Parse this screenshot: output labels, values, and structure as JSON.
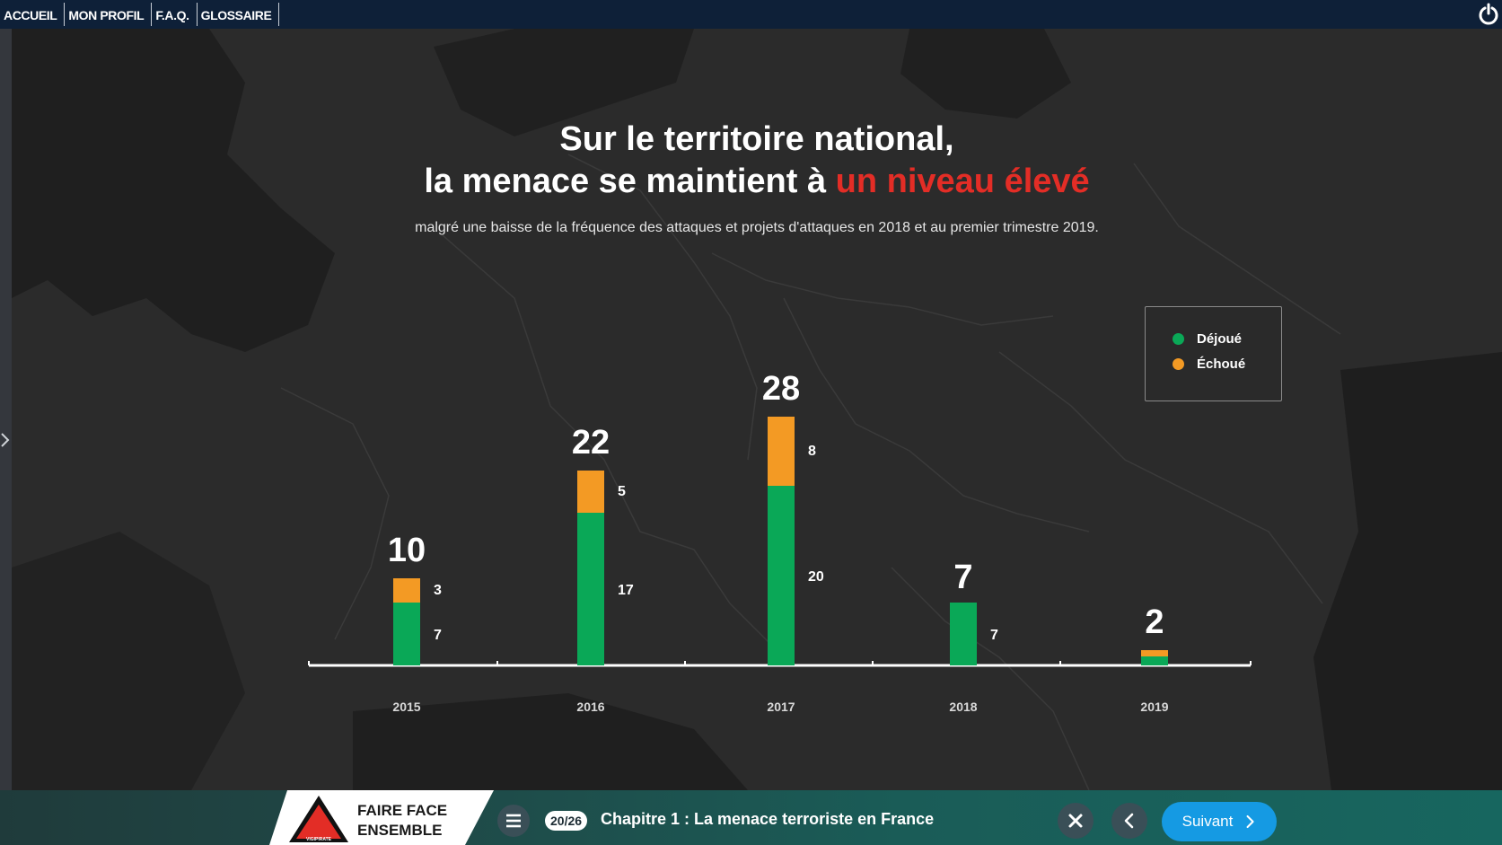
{
  "nav": {
    "items": [
      "ACCUEIL",
      "MON PROFIL",
      "F.A.Q.",
      "GLOSSAIRE"
    ]
  },
  "header": {
    "title_line1": "Sur le territoire national,",
    "title_line2_prefix": "la menace se maintient à ",
    "title_line2_accent": "un niveau élevé",
    "subtitle": "malgré une baisse de la fréquence des attaques et projets d'attaques en 2018 et au premier trimestre 2019."
  },
  "chart_data": {
    "type": "bar",
    "stacked": true,
    "categories": [
      "2015",
      "2016",
      "2017",
      "2018",
      "2019"
    ],
    "totals": [
      10,
      22,
      28,
      7,
      2
    ],
    "series": [
      {
        "name": "Déjoué",
        "values": [
          7,
          17,
          20,
          7,
          1
        ],
        "value_labels": [
          "7",
          "17",
          "20",
          "7",
          ""
        ],
        "color": "#0aa857"
      },
      {
        "name": "Échoué",
        "values": [
          3,
          5,
          8,
          0,
          1
        ],
        "value_labels": [
          "3",
          "5",
          "8",
          "",
          ""
        ],
        "color": "#f39a24"
      }
    ],
    "ylim": [
      0,
      28
    ],
    "grid": false,
    "legend_position": "top-right"
  },
  "legend": {
    "items": [
      {
        "label": "Déjoué",
        "color": "#0aa857"
      },
      {
        "label": "Échoué",
        "color": "#f39a24"
      }
    ]
  },
  "footer": {
    "brand_line1": "FAIRE FACE",
    "brand_line2": "ENSEMBLE",
    "brand_logo_text": "VIGIPIRATE",
    "page_indicator": "20/26",
    "chapter": "Chapitre 1 : La menace terroriste en France",
    "next_label": "Suivant"
  },
  "icons": {
    "power": "power-icon",
    "menu": "hamburger-menu-icon",
    "close": "close-icon",
    "prev": "chevron-left-icon",
    "next": "chevron-right-icon",
    "sidebar": "chevron-right-icon"
  }
}
